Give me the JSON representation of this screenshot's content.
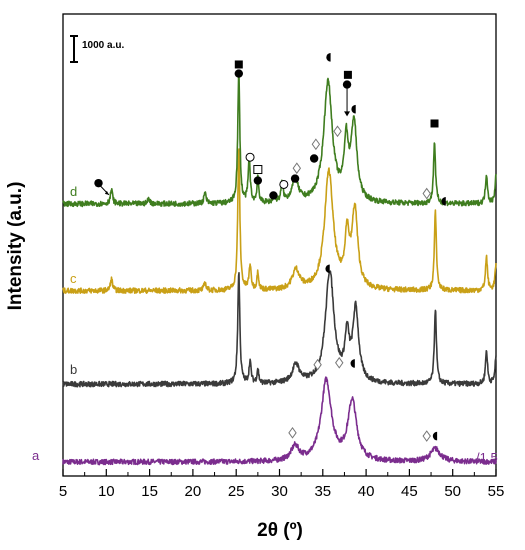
{
  "chart_data": {
    "type": "line",
    "xlabel": "2θ (º)",
    "ylabel": "Intensity (a.u.)",
    "xlim": [
      5,
      55
    ],
    "xticks": [
      5,
      10,
      15,
      20,
      25,
      30,
      35,
      40,
      45,
      50,
      55
    ],
    "y_ticks_shown": false,
    "scale_bar_label": "1000 a.u.",
    "scale_note": "/1.5",
    "colors": {
      "a": "#7b2d8e",
      "b": "#3a3a3a",
      "c": "#c9a017",
      "d": "#3f7d1f"
    },
    "series": [
      {
        "name": "a",
        "baseline": 0,
        "peaks": [
          [
            31.8,
            110,
            0.55
          ],
          [
            35.4,
            620,
            0.7
          ],
          [
            38.4,
            460,
            0.6
          ],
          [
            48.0,
            100,
            0.7
          ]
        ]
      },
      {
        "name": "b",
        "baseline": 600,
        "peaks": [
          [
            25.3,
            860,
            0.14
          ],
          [
            26.6,
            170,
            0.14
          ],
          [
            27.5,
            110,
            0.12
          ],
          [
            31.9,
            140,
            0.5
          ],
          [
            35.8,
            860,
            0.6
          ],
          [
            37.8,
            330,
            0.3
          ],
          [
            38.8,
            560,
            0.4
          ],
          [
            48.0,
            580,
            0.14
          ],
          [
            53.9,
            260,
            0.14
          ],
          [
            55.0,
            210,
            0.14
          ]
        ]
      },
      {
        "name": "c",
        "baseline": 1320,
        "peaks": [
          [
            10.6,
            90,
            0.15
          ],
          [
            21.4,
            60,
            0.15
          ],
          [
            25.3,
            1090,
            0.14
          ],
          [
            26.6,
            190,
            0.14
          ],
          [
            27.5,
            140,
            0.12
          ],
          [
            31.9,
            150,
            0.5
          ],
          [
            35.7,
            910,
            0.6
          ],
          [
            37.8,
            380,
            0.3
          ],
          [
            38.7,
            600,
            0.4
          ],
          [
            48.0,
            600,
            0.14
          ],
          [
            53.9,
            260,
            0.14
          ],
          [
            55.0,
            200,
            0.14
          ]
        ]
      },
      {
        "name": "d",
        "baseline": 1990,
        "peaks": [
          [
            10.6,
            110,
            0.15
          ],
          [
            14.9,
            40,
            0.15
          ],
          [
            21.4,
            80,
            0.15
          ],
          [
            25.3,
            1000,
            0.14
          ],
          [
            26.5,
            340,
            0.14
          ],
          [
            27.5,
            200,
            0.12
          ],
          [
            29.4,
            50,
            0.15
          ],
          [
            30.3,
            140,
            0.15
          ],
          [
            31.8,
            170,
            0.45
          ],
          [
            35.6,
            930,
            0.6
          ],
          [
            37.7,
            430,
            0.3
          ],
          [
            38.6,
            600,
            0.4
          ],
          [
            47.9,
            470,
            0.14
          ],
          [
            53.9,
            230,
            0.14
          ],
          [
            55.0,
            220,
            0.14
          ]
        ]
      }
    ],
    "phase_markers": [
      {
        "symbol": "square-filled",
        "x": 25.3,
        "y": 3065
      },
      {
        "symbol": "circle-filled",
        "x": 25.3,
        "y": 2995
      },
      {
        "symbol": "circle-open",
        "x": 26.6,
        "y": 2350
      },
      {
        "symbol": "square-open",
        "x": 27.5,
        "y": 2255
      },
      {
        "symbol": "circle-filled",
        "x": 27.5,
        "y": 2170
      },
      {
        "symbol": "circle-filled",
        "x": 29.3,
        "y": 2055
      },
      {
        "symbol": "circle-open",
        "x": 30.5,
        "y": 2140
      },
      {
        "symbol": "diamond-open",
        "x": 32.0,
        "y": 2265
      },
      {
        "symbol": "circle-filled",
        "x": 31.8,
        "y": 2185
      },
      {
        "symbol": "circle-filled",
        "x": 34.0,
        "y": 2340
      },
      {
        "symbol": "diamond-open",
        "x": 34.2,
        "y": 2450
      },
      {
        "symbol": "half-circle",
        "x": 35.9,
        "y": 3120
      },
      {
        "symbol": "square-filled",
        "x": 37.9,
        "y": 2985
      },
      {
        "symbol": "circle-filled",
        "x": 37.8,
        "y": 2910
      },
      {
        "symbol": "diamond-open",
        "x": 36.7,
        "y": 2550
      },
      {
        "symbol": "half-circle",
        "x": 38.8,
        "y": 2720
      },
      {
        "symbol": "square-filled",
        "x": 47.9,
        "y": 2610
      },
      {
        "symbol": "diamond-open",
        "x": 47.0,
        "y": 2070
      },
      {
        "symbol": "half-circle",
        "x": 49.2,
        "y": 2010
      },
      {
        "symbol": "circle-filled",
        "x": 9.1,
        "y": 2150
      },
      {
        "symbol": "half-circle",
        "x": 35.8,
        "y": 1490
      },
      {
        "symbol": "diamond-open",
        "x": 34.4,
        "y": 750
      },
      {
        "symbol": "diamond-open",
        "x": 36.9,
        "y": 765
      },
      {
        "symbol": "half-circle",
        "x": 38.7,
        "y": 760
      },
      {
        "symbol": "diamond-open",
        "x": 31.5,
        "y": 225
      },
      {
        "symbol": "diamond-open",
        "x": 47.0,
        "y": 200
      },
      {
        "symbol": "half-circle",
        "x": 48.2,
        "y": 200
      }
    ]
  }
}
